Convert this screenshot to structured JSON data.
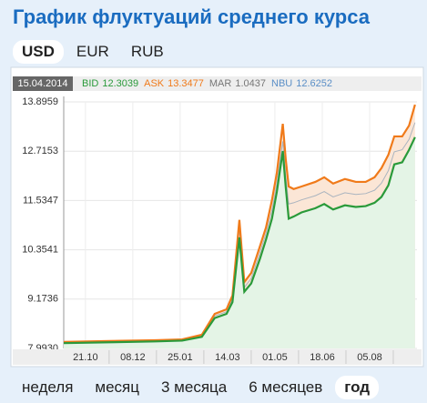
{
  "header": {
    "title": "График флуктуаций среднего курса"
  },
  "currency_tabs": {
    "items": [
      "USD",
      "EUR",
      "RUB"
    ],
    "selected": 0
  },
  "chart_data": {
    "type": "line",
    "date": "15.04.2014",
    "x": [
      0,
      46,
      93,
      120,
      140,
      153,
      165,
      171,
      178,
      183,
      190,
      199,
      205,
      211,
      216,
      222,
      225,
      228,
      233,
      241,
      255,
      264,
      273,
      285,
      296,
      306,
      315,
      322,
      329,
      335,
      343,
      350,
      356
    ],
    "xlim": [
      0,
      358
    ],
    "xticks": [
      {
        "value": 22,
        "label": "21.10"
      },
      {
        "value": 70,
        "label": "08.12"
      },
      {
        "value": 118,
        "label": "25.01"
      },
      {
        "value": 166,
        "label": "14.03"
      },
      {
        "value": 214,
        "label": "01.05"
      },
      {
        "value": 262,
        "label": "18.06"
      },
      {
        "value": 310,
        "label": "05.08"
      }
    ],
    "ylim": [
      7.993,
      13.8959
    ],
    "yticks": [
      {
        "value": 7.993,
        "label": "7.9930"
      },
      9.1736,
      10.3541,
      11.5347,
      12.7153,
      13.8959
    ],
    "grid": true,
    "series": [
      {
        "name": "ASK",
        "current": 13.3477,
        "color": "#f07a1a",
        "fill": "#fbe6d6",
        "values": [
          8.15,
          8.17,
          8.19,
          8.21,
          8.32,
          8.82,
          8.93,
          9.26,
          11.07,
          9.58,
          9.8,
          10.45,
          10.89,
          11.54,
          12.2,
          13.37,
          12.52,
          11.87,
          11.81,
          11.87,
          11.98,
          12.09,
          11.94,
          12.05,
          11.98,
          11.98,
          12.09,
          12.31,
          12.63,
          13.07,
          13.07,
          13.33,
          13.83
        ]
      },
      {
        "name": "BID",
        "current": 12.3039,
        "color": "#2a9a3a",
        "fill": "#e4f4e6",
        "values": [
          8.12,
          8.14,
          8.16,
          8.18,
          8.27,
          8.72,
          8.82,
          9.1,
          10.65,
          9.35,
          9.55,
          10.15,
          10.6,
          11.1,
          11.75,
          12.72,
          11.85,
          11.1,
          11.15,
          11.25,
          11.35,
          11.45,
          11.32,
          11.42,
          11.38,
          11.4,
          11.48,
          11.62,
          11.9,
          12.4,
          12.45,
          12.75,
          13.05
        ]
      },
      {
        "name": "NBU",
        "current": 12.6252,
        "color": "#5b8fc7",
        "line_color": "#aab4bf",
        "values": [
          8.13,
          8.15,
          8.17,
          8.19,
          8.29,
          8.77,
          8.87,
          9.18,
          10.85,
          9.45,
          9.67,
          10.3,
          10.75,
          11.3,
          11.95,
          12.95,
          12.1,
          11.45,
          11.48,
          11.55,
          11.65,
          11.75,
          11.62,
          11.72,
          11.68,
          11.7,
          11.78,
          11.95,
          12.25,
          12.7,
          12.75,
          13.0,
          13.4
        ]
      }
    ],
    "mar": {
      "name": "MAR",
      "value": 1.0437,
      "color": "#777777"
    }
  },
  "period_tabs": {
    "items": [
      "неделя",
      "месяц",
      "3 месяца",
      "6 месяцев",
      "год"
    ],
    "selected": 4
  }
}
